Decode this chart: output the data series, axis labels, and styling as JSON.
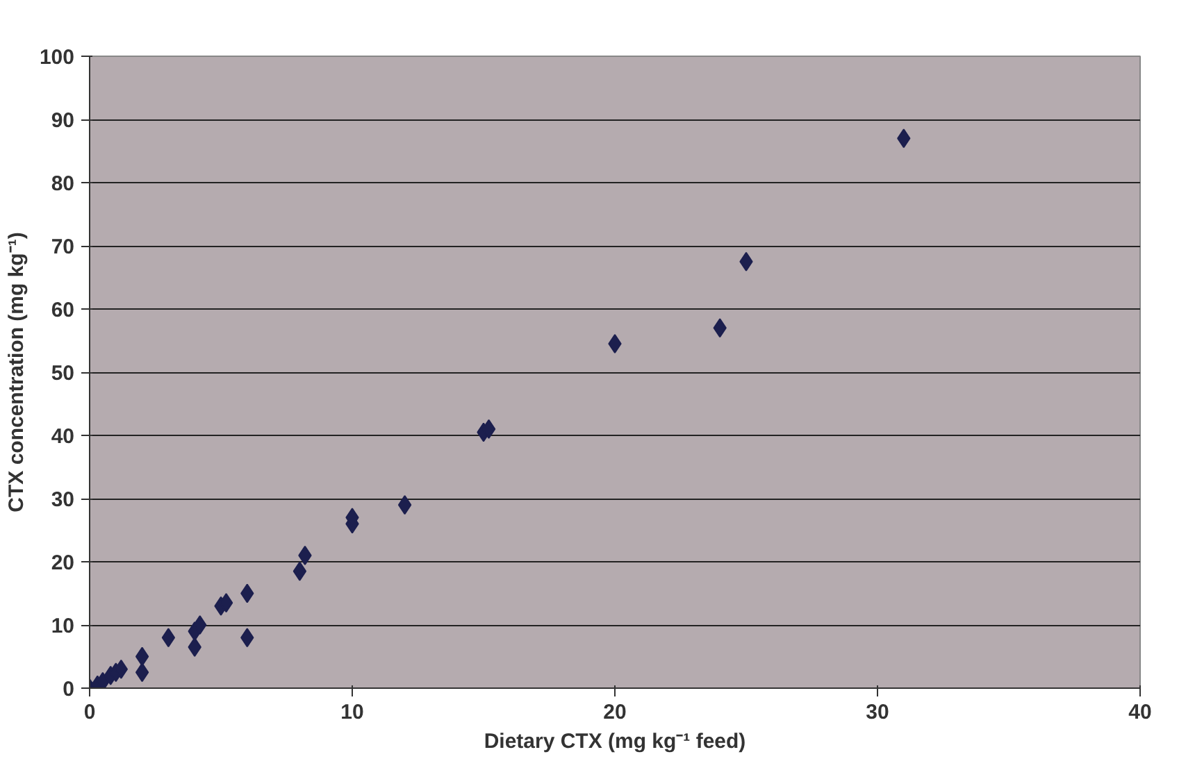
{
  "chart_data": {
    "type": "scatter",
    "xlabel": "Dietary CTX (mg kg⁻¹ feed)",
    "ylabel": "CTX concentration (mg kg⁻¹)",
    "x": [
      0,
      0.3,
      0.5,
      0.8,
      1,
      1.2,
      2,
      2,
      3,
      4,
      4,
      4.2,
      5,
      5.2,
      6,
      6,
      8,
      8.2,
      10,
      10,
      12,
      15,
      15.2,
      20,
      24,
      25,
      31
    ],
    "series": [
      {
        "color": "#1c1f4e",
        "values": [
          0,
          0.5,
          1,
          2,
          2.5,
          3,
          2.5,
          5,
          8,
          6.5,
          9,
          10,
          13,
          13.5,
          15,
          8,
          18.5,
          21,
          26,
          27,
          29,
          40.5,
          41,
          54.5,
          57,
          67.5,
          87
        ]
      }
    ],
    "xlim": [
      0,
      40
    ],
    "ylim": [
      0,
      100
    ],
    "xticks": [
      0,
      10,
      20,
      30,
      40
    ],
    "yticks": [
      0,
      10,
      20,
      30,
      40,
      50,
      60,
      70,
      80,
      90,
      100
    ],
    "grid": "y",
    "marker": "diamond"
  }
}
